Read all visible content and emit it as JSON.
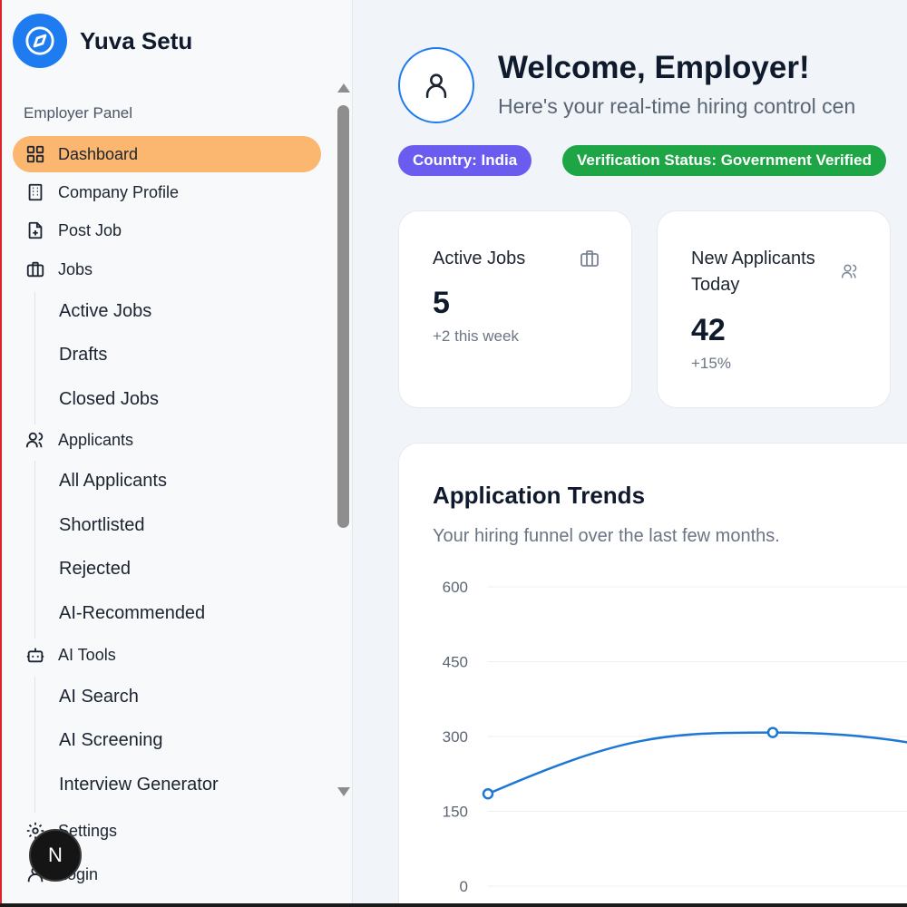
{
  "brand": {
    "name": "Yuva Setu"
  },
  "sidebar": {
    "panel_label": "Employer Panel",
    "items": [
      {
        "label": "Dashboard",
        "icon": "grid-icon",
        "active": true
      },
      {
        "label": "Company Profile",
        "icon": "building-icon"
      },
      {
        "label": "Post Job",
        "icon": "file-plus-icon"
      },
      {
        "label": "Jobs",
        "icon": "briefcase-icon",
        "children": [
          "Active Jobs",
          "Drafts",
          "Closed Jobs"
        ]
      },
      {
        "label": "Applicants",
        "icon": "users-icon",
        "children": [
          "All Applicants",
          "Shortlisted",
          "Rejected",
          "AI-Recommended"
        ]
      },
      {
        "label": "AI Tools",
        "icon": "bot-icon",
        "children": [
          "AI Search",
          "AI Screening",
          "Interview Generator"
        ]
      },
      {
        "label": "Settings",
        "icon": "gear-icon"
      },
      {
        "label": "Login",
        "icon": "user-icon"
      }
    ]
  },
  "overlay": {
    "badge_letter": "N"
  },
  "header": {
    "title": "Welcome, Employer!",
    "subtitle": "Here's your real-time hiring control cen",
    "pills": {
      "country": "Country: India",
      "verification": "Verification Status: Government Verified"
    }
  },
  "stats": [
    {
      "title": "Active Jobs",
      "value": "5",
      "delta": "+2 this week",
      "icon": "briefcase-icon"
    },
    {
      "title": "New Applicants Today",
      "value": "42",
      "delta": "+15%",
      "icon": "users-icon"
    }
  ],
  "trends": {
    "title": "Application Trends",
    "subtitle": "Your hiring funnel over the last few months."
  },
  "colors": {
    "accent": "#1e7cf0",
    "active_nav": "#fbb76f",
    "country_pill": "#6b5cf0",
    "verify_pill": "#1ea646"
  },
  "chart_data": {
    "type": "line",
    "yticks": [
      "600",
      "450",
      "300",
      "150",
      "0"
    ],
    "ylim": [
      0,
      600
    ],
    "x": [
      0,
      1
    ],
    "series": [
      {
        "values": [
          185,
          308
        ]
      }
    ],
    "grid": true
  }
}
